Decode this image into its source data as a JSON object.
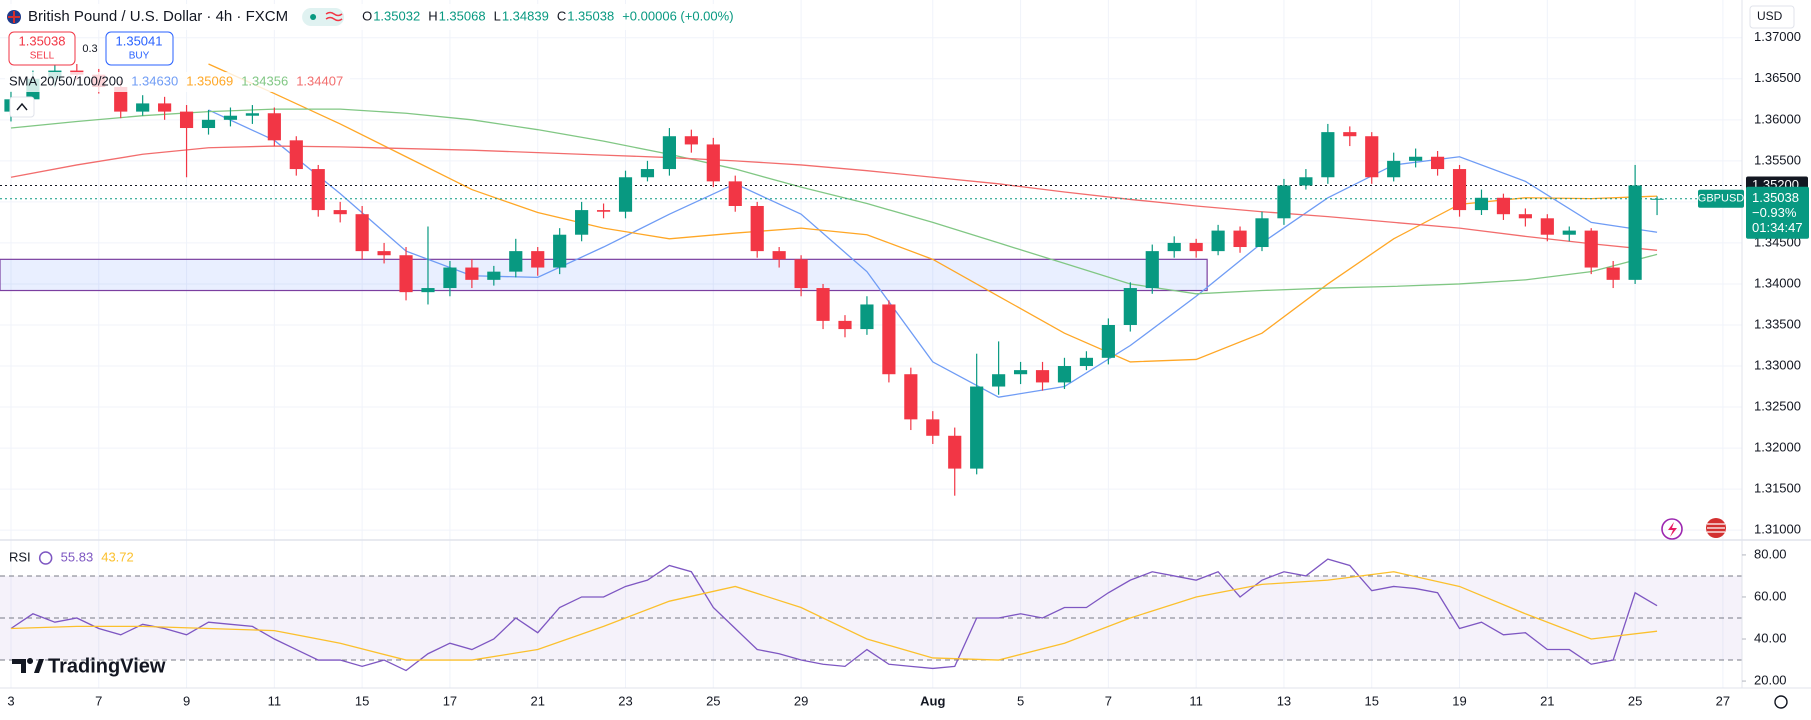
{
  "chart_data": {
    "type": "candlestick",
    "title": "British Pound / U.S. Dollar · 4h · FXCM",
    "ohlc_header": [
      {
        "key": "O",
        "value": "1.35032"
      },
      {
        "key": "H",
        "value": "1.35068"
      },
      {
        "key": "L",
        "value": "1.34839"
      },
      {
        "key": "C",
        "value": "1.35038"
      }
    ],
    "change_header": "+0.00006 (+0.00%)",
    "sell": {
      "price": "1.35038",
      "label": "SELL"
    },
    "buy": {
      "price": "1.35041",
      "label": "BUY"
    },
    "spread": "0.3",
    "currency": "USD",
    "indicator": "SMA 20/50/100/200",
    "up_color": "#089981",
    "down_color": "#f23645",
    "open": [
      1.361,
      1.3625,
      1.365,
      1.366,
      1.3655,
      1.364,
      1.361,
      1.362,
      1.361,
      1.359,
      1.36,
      1.3605,
      1.3608,
      1.3575,
      1.354,
      1.349,
      1.3485,
      1.344,
      1.3435,
      1.339,
      1.3395,
      1.342,
      1.3405,
      1.3415,
      1.344,
      1.342,
      1.346,
      1.349,
      1.3488,
      1.353,
      1.354,
      1.358,
      1.357,
      1.3525,
      1.3495,
      1.344,
      1.343,
      1.3395,
      1.3355,
      1.3345,
      1.3375,
      1.329,
      1.3235,
      1.3215,
      1.3175,
      1.3275,
      1.329,
      1.3295,
      1.328,
      1.33,
      1.331,
      1.335,
      1.3395,
      1.344,
      1.345,
      1.344,
      1.3465,
      1.3445,
      1.348,
      1.352,
      1.353,
      1.3585,
      1.358,
      1.353,
      1.355,
      1.3555,
      1.354,
      1.349,
      1.3505,
      1.3485,
      1.348,
      1.346,
      1.3465,
      1.342,
      1.3405,
      1.35032
    ],
    "high": [
      1.3635,
      1.366,
      1.3675,
      1.3668,
      1.3662,
      1.3648,
      1.363,
      1.3628,
      1.3618,
      1.3612,
      1.3615,
      1.3618,
      1.3615,
      1.358,
      1.3545,
      1.35,
      1.3495,
      1.345,
      1.3445,
      1.347,
      1.3428,
      1.343,
      1.3422,
      1.3455,
      1.3445,
      1.3468,
      1.35,
      1.3498,
      1.3538,
      1.355,
      1.359,
      1.3588,
      1.3578,
      1.3532,
      1.35,
      1.3445,
      1.3435,
      1.34,
      1.3362,
      1.3385,
      1.338,
      1.3298,
      1.3245,
      1.3225,
      1.3315,
      1.333,
      1.3305,
      1.3305,
      1.331,
      1.3318,
      1.3358,
      1.3402,
      1.3448,
      1.3458,
      1.3455,
      1.3472,
      1.347,
      1.3488,
      1.3528,
      1.354,
      1.3595,
      1.3592,
      1.3585,
      1.356,
      1.3565,
      1.3562,
      1.3545,
      1.3515,
      1.351,
      1.3492,
      1.3485,
      1.347,
      1.3468,
      1.3428,
      1.3545,
      1.35068
    ],
    "low": [
      1.3598,
      1.3615,
      1.364,
      1.3648,
      1.3632,
      1.3602,
      1.3605,
      1.36,
      1.353,
      1.3582,
      1.3592,
      1.3595,
      1.3568,
      1.3532,
      1.3482,
      1.3475,
      1.343,
      1.3425,
      1.338,
      1.3375,
      1.3385,
      1.3395,
      1.3398,
      1.3408,
      1.341,
      1.3412,
      1.3452,
      1.348,
      1.348,
      1.3525,
      1.3532,
      1.356,
      1.3518,
      1.3488,
      1.3432,
      1.342,
      1.3385,
      1.3345,
      1.3335,
      1.3338,
      1.328,
      1.3222,
      1.3205,
      1.3142,
      1.3168,
      1.3265,
      1.3278,
      1.327,
      1.3272,
      1.3295,
      1.3302,
      1.3342,
      1.3388,
      1.3432,
      1.3432,
      1.3435,
      1.3438,
      1.344,
      1.3472,
      1.3515,
      1.3522,
      1.3568,
      1.3522,
      1.3525,
      1.3542,
      1.3532,
      1.3482,
      1.3484,
      1.3478,
      1.347,
      1.3452,
      1.3452,
      1.3412,
      1.3395,
      1.34,
      1.34839
    ],
    "close": [
      1.3625,
      1.365,
      1.366,
      1.3655,
      1.364,
      1.361,
      1.362,
      1.361,
      1.359,
      1.36,
      1.3605,
      1.3608,
      1.3575,
      1.354,
      1.349,
      1.3485,
      1.344,
      1.3435,
      1.339,
      1.3395,
      1.342,
      1.3405,
      1.3415,
      1.344,
      1.342,
      1.346,
      1.349,
      1.3488,
      1.353,
      1.354,
      1.358,
      1.357,
      1.3525,
      1.3495,
      1.344,
      1.343,
      1.3395,
      1.3355,
      1.3345,
      1.3375,
      1.329,
      1.3235,
      1.3215,
      1.3175,
      1.3275,
      1.329,
      1.3295,
      1.328,
      1.33,
      1.331,
      1.335,
      1.3395,
      1.344,
      1.345,
      1.344,
      1.3465,
      1.3445,
      1.348,
      1.352,
      1.353,
      1.3585,
      1.358,
      1.353,
      1.355,
      1.3555,
      1.354,
      1.349,
      1.3505,
      1.3485,
      1.348,
      1.346,
      1.3465,
      1.342,
      1.3405,
      1.352,
      1.35038
    ],
    "series": [
      {
        "color": "#6f9cf5",
        "value_label": "1.34630",
        "x": [
          0,
          3,
          6,
          9,
          12,
          15,
          18,
          21,
          24,
          27,
          30,
          33,
          36,
          39,
          42,
          45,
          48,
          51,
          54,
          57,
          60,
          63,
          66,
          69,
          72,
          75
        ],
        "values": [
          null,
          null,
          null,
          1.3612,
          1.3575,
          1.351,
          1.344,
          1.341,
          1.3408,
          1.3445,
          1.3485,
          1.3522,
          1.3485,
          1.3415,
          1.3305,
          1.3262,
          1.3275,
          1.3325,
          1.3385,
          1.345,
          1.3505,
          1.3545,
          1.3555,
          1.3525,
          1.3475,
          1.3463
        ]
      },
      {
        "color": "#ffa726",
        "value_label": "1.35069",
        "x": [
          0,
          3,
          6,
          9,
          12,
          15,
          18,
          21,
          24,
          27,
          30,
          33,
          36,
          39,
          42,
          45,
          48,
          51,
          54,
          57,
          60,
          63,
          66,
          69,
          72,
          75
        ],
        "values": [
          null,
          null,
          null,
          1.3668,
          1.3632,
          1.3595,
          1.3555,
          1.3515,
          1.3487,
          1.3468,
          1.3455,
          1.3462,
          1.3468,
          1.346,
          1.343,
          1.3385,
          1.334,
          1.3305,
          1.3308,
          1.334,
          1.34,
          1.3455,
          1.3497,
          1.3505,
          1.3504,
          1.3507
        ]
      },
      {
        "color": "#81c784",
        "value_label": "1.34356",
        "x": [
          0,
          3,
          6,
          9,
          12,
          15,
          18,
          21,
          24,
          27,
          30,
          33,
          36,
          39,
          42,
          45,
          48,
          51,
          54,
          57,
          60,
          63,
          66,
          69,
          72,
          75
        ],
        "values": [
          1.359,
          1.3598,
          1.3605,
          1.361,
          1.3613,
          1.3613,
          1.3608,
          1.36,
          1.3588,
          1.3574,
          1.3558,
          1.354,
          1.3518,
          1.3498,
          1.3475,
          1.345,
          1.3425,
          1.34,
          1.3388,
          1.3392,
          1.3395,
          1.3397,
          1.34,
          1.3405,
          1.3415,
          1.3436
        ]
      },
      {
        "color": "#f26d6d",
        "value_label": "1.34407",
        "x": [
          0,
          3,
          6,
          9,
          12,
          15,
          18,
          21,
          24,
          27,
          30,
          33,
          36,
          39,
          42,
          45,
          48,
          51,
          54,
          57,
          60,
          63,
          66,
          69,
          72,
          75
        ],
        "values": [
          1.353,
          1.3545,
          1.3558,
          1.3566,
          1.3568,
          1.3567,
          1.3565,
          1.3563,
          1.356,
          1.3557,
          1.3554,
          1.355,
          1.3545,
          1.3538,
          1.353,
          1.3522,
          1.3512,
          1.3503,
          1.3495,
          1.3488,
          1.3482,
          1.3475,
          1.3468,
          1.3458,
          1.3449,
          1.3441
        ]
      }
    ],
    "zone": {
      "x": [
        -0.5,
        54.5
      ],
      "y": [
        1.3392,
        1.343
      ],
      "color": "#2962ff",
      "border": "#7b3fa0"
    },
    "price_line": {
      "value": 1.352,
      "label": "1.35200"
    },
    "current": {
      "symbol": "GBPUSD",
      "price": {
        "value": 1.35038,
        "label": "1.35038"
      },
      "change": "−0.93%",
      "countdown": "01:34:47",
      "color": "#089981"
    },
    "xlim": [
      -0.5,
      78.87
    ],
    "ylim": [
      1.3088,
      1.3746
    ],
    "yticks": [
      {
        "value": 1.37,
        "label": "1.37000"
      },
      {
        "value": 1.365,
        "label": "1.36500"
      },
      {
        "value": 1.36,
        "label": "1.36000"
      },
      {
        "value": 1.355,
        "label": "1.35500"
      },
      {
        "value": 1.35,
        "label": "1.35000"
      },
      {
        "value": 1.345,
        "label": "1.34500"
      },
      {
        "value": 1.34,
        "label": "1.34000"
      },
      {
        "value": 1.335,
        "label": "1.33500"
      },
      {
        "value": 1.33,
        "label": "1.33000"
      },
      {
        "value": 1.325,
        "label": "1.32500"
      },
      {
        "value": 1.32,
        "label": "1.32000"
      },
      {
        "value": 1.315,
        "label": "1.31500"
      },
      {
        "value": 1.31,
        "label": "1.31000"
      }
    ],
    "xticks": [
      {
        "value": 0,
        "label": "3"
      },
      {
        "value": 4,
        "label": "7"
      },
      {
        "value": 8,
        "label": "9"
      },
      {
        "value": 12,
        "label": "11"
      },
      {
        "value": 16,
        "label": "15"
      },
      {
        "value": 20,
        "label": "17"
      },
      {
        "value": 24,
        "label": "21"
      },
      {
        "value": 28,
        "label": "23"
      },
      {
        "value": 32,
        "label": "25"
      },
      {
        "value": 36,
        "label": "29"
      },
      {
        "value": 42,
        "label": "Aug"
      },
      {
        "value": 46,
        "label": "5"
      },
      {
        "value": 50,
        "label": "7"
      },
      {
        "value": 54,
        "label": "11"
      },
      {
        "value": 58,
        "label": "13"
      },
      {
        "value": 62,
        "label": "15"
      },
      {
        "value": 66,
        "label": "19"
      },
      {
        "value": 70,
        "label": "21"
      },
      {
        "value": 74,
        "label": "25"
      },
      {
        "value": 78,
        "label": "27"
      }
    ],
    "grid": true,
    "rsi": {
      "label": "RSI",
      "color": "#7e57c2",
      "value_label": "55.83",
      "ma_label": "43.72",
      "values": [
        45,
        52,
        48,
        50,
        45,
        42,
        47,
        45,
        42,
        48,
        47,
        46,
        40,
        35,
        30,
        30,
        27,
        30,
        25,
        33,
        38,
        35,
        40,
        50,
        43,
        55,
        60,
        60,
        65,
        68,
        75,
        72,
        55,
        45,
        35,
        33,
        30,
        28,
        27,
        35,
        28,
        27,
        26,
        27,
        50,
        50,
        52,
        50,
        55,
        55,
        62,
        68,
        72,
        70,
        68,
        72,
        60,
        68,
        72,
        70,
        78,
        75,
        63,
        65,
        64,
        62,
        45,
        48,
        42,
        43,
        35,
        35,
        28,
        30,
        62,
        55.83
      ],
      "ma": {
        "color": "#fbc02d",
        "x": [
          0,
          3,
          6,
          9,
          12,
          15,
          18,
          21,
          24,
          27,
          30,
          33,
          36,
          39,
          42,
          45,
          48,
          51,
          54,
          57,
          60,
          63,
          66,
          69,
          72,
          75
        ],
        "values": [
          45,
          46,
          46,
          45,
          44,
          38,
          30,
          30,
          35,
          46,
          58,
          65,
          55,
          40,
          31,
          30,
          38,
          50,
          60,
          66,
          68,
          72,
          65,
          52,
          40,
          43.72
        ]
      },
      "levels": [
        70,
        50,
        30
      ],
      "ylim": [
        16.7,
        87.1
      ],
      "yticks": [
        {
          "value": 80,
          "label": "80.00"
        },
        {
          "value": 60,
          "label": "60.00"
        },
        {
          "value": 40,
          "label": "40.00"
        },
        {
          "value": 20,
          "label": "20.00"
        }
      ]
    },
    "logo": "TradingView"
  }
}
